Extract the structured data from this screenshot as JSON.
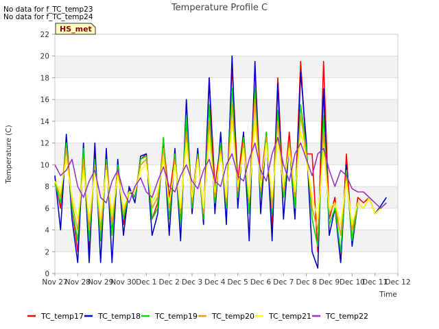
{
  "notes": [
    "No data for f_TC_temp23",
    "No data for f_TC_temp24"
  ],
  "badge": "HS_met",
  "chart_data": {
    "type": "line",
    "title": "Temperature Profile C",
    "xlabel": "Time",
    "ylabel": "Temperature (C)",
    "ylim": [
      0,
      22
    ],
    "yticks": [
      0,
      2,
      4,
      6,
      8,
      10,
      12,
      14,
      16,
      18,
      20,
      22
    ],
    "xlim": [
      0,
      15
    ],
    "xtick_labels": [
      "Nov 27",
      "Nov 28",
      "Nov 29",
      "Nov 30",
      "Dec 1",
      "Dec 2",
      "Dec 3",
      "Dec 4",
      "Dec 5",
      "Dec 6",
      "Dec 7",
      "Dec 8",
      "Dec 9",
      "Dec 10",
      "Dec 11",
      "Dec 12"
    ],
    "grid": true,
    "legend_position": "bottom",
    "x": [
      0.0,
      0.25,
      0.5,
      0.75,
      1.0,
      1.25,
      1.5,
      1.75,
      2.0,
      2.25,
      2.5,
      2.75,
      3.0,
      3.25,
      3.5,
      3.75,
      4.0,
      4.25,
      4.5,
      4.75,
      5.0,
      5.25,
      5.5,
      5.75,
      6.0,
      6.25,
      6.5,
      6.75,
      7.0,
      7.25,
      7.5,
      7.75,
      8.0,
      8.25,
      8.5,
      8.75,
      9.0,
      9.25,
      9.5,
      9.75,
      10.0,
      10.25,
      10.5,
      10.75,
      11.0,
      11.25,
      11.5,
      11.75,
      12.0,
      12.25,
      12.5,
      12.75,
      13.0,
      13.25,
      13.5,
      13.75,
      14.0,
      14.25,
      14.5
    ],
    "series": [
      {
        "name": "TC_temp17",
        "color": "#ff0000",
        "values": [
          8.8,
          6.0,
          12.5,
          6.0,
          2.0,
          11.0,
          2.0,
          11.0,
          3.0,
          11.0,
          4.0,
          10.0,
          4.5,
          7.8,
          7.0,
          10.5,
          11.0,
          5.0,
          6.5,
          12.0,
          7.0,
          11.0,
          5.0,
          14.0,
          7.0,
          11.0,
          5.0,
          18.0,
          8.0,
          12.0,
          6.0,
          19.0,
          8.5,
          13.0,
          6.0,
          19.0,
          8.0,
          13.0,
          4.0,
          18.0,
          7.0,
          13.0,
          6.0,
          19.5,
          11.0,
          11.0,
          2.0,
          19.5,
          5.0,
          7.0,
          1.0,
          11.0,
          3.0,
          7.0,
          6.5,
          7.0,
          5.5,
          6.0,
          6.5
        ]
      },
      {
        "name": "TC_temp18",
        "color": "#0000cc",
        "values": [
          9.0,
          4.0,
          12.8,
          5.0,
          1.0,
          12.0,
          1.0,
          12.0,
          1.0,
          11.5,
          1.0,
          10.5,
          3.5,
          8.0,
          6.5,
          10.8,
          11.0,
          3.5,
          5.5,
          12.5,
          3.5,
          11.5,
          3.0,
          16.0,
          5.5,
          11.5,
          4.5,
          18.0,
          5.5,
          13.0,
          4.5,
          20.0,
          6.0,
          13.0,
          3.0,
          19.5,
          5.5,
          13.0,
          3.0,
          17.5,
          5.0,
          12.0,
          5.0,
          18.5,
          12.0,
          2.0,
          0.5,
          17.0,
          3.5,
          6.0,
          1.0,
          10.0,
          2.5,
          6.5,
          6.0,
          7.0,
          5.5,
          6.2,
          7.0
        ]
      },
      {
        "name": "TC_temp19",
        "color": "#00dd00",
        "values": [
          8.3,
          6.5,
          12.0,
          6.0,
          3.0,
          11.5,
          3.0,
          10.5,
          3.0,
          10.5,
          3.5,
          10.0,
          5.0,
          7.5,
          7.0,
          10.5,
          10.8,
          5.0,
          6.0,
          12.5,
          5.0,
          11.0,
          4.5,
          14.5,
          6.0,
          11.0,
          5.0,
          15.5,
          6.5,
          12.0,
          6.0,
          17.0,
          7.0,
          12.5,
          5.5,
          17.0,
          7.0,
          13.0,
          5.5,
          15.0,
          7.0,
          12.0,
          6.0,
          15.5,
          11.5,
          5.0,
          2.5,
          14.5,
          4.5,
          6.0,
          2.0,
          9.5,
          3.0,
          6.5,
          6.0,
          7.0,
          5.5,
          6.0,
          6.5
        ]
      },
      {
        "name": "TC_temp20",
        "color": "#e8a000",
        "values": [
          8.5,
          7.0,
          11.5,
          6.5,
          4.0,
          10.5,
          4.0,
          10.0,
          4.0,
          10.0,
          4.5,
          9.5,
          5.5,
          7.5,
          7.5,
          10.0,
          10.5,
          6.0,
          7.0,
          11.5,
          6.0,
          10.5,
          5.5,
          13.0,
          6.5,
          10.8,
          5.5,
          14.0,
          7.0,
          11.5,
          6.5,
          15.5,
          7.5,
          12.0,
          6.5,
          16.0,
          7.5,
          12.5,
          6.0,
          14.0,
          7.5,
          12.0,
          7.0,
          14.5,
          11.0,
          6.0,
          4.0,
          13.0,
          5.5,
          6.5,
          3.5,
          9.0,
          4.0,
          6.5,
          6.0,
          7.0,
          5.5,
          6.0,
          6.5
        ]
      },
      {
        "name": "TC_temp21",
        "color": "#ffff00",
        "values": [
          8.5,
          7.5,
          10.5,
          7.0,
          5.0,
          9.5,
          5.0,
          9.5,
          5.0,
          9.5,
          5.5,
          9.0,
          6.0,
          7.5,
          7.5,
          9.5,
          10.0,
          6.5,
          7.5,
          10.5,
          6.5,
          10.0,
          6.0,
          12.0,
          7.0,
          10.5,
          6.0,
          12.5,
          7.5,
          11.0,
          7.0,
          14.0,
          8.0,
          11.5,
          7.0,
          14.0,
          8.0,
          12.0,
          7.0,
          12.5,
          8.0,
          11.5,
          7.5,
          13.0,
          10.5,
          7.0,
          5.0,
          11.5,
          6.0,
          6.5,
          4.5,
          8.5,
          4.5,
          6.5,
          6.0,
          7.0,
          5.5,
          6.0,
          6.5
        ]
      },
      {
        "name": "TC_temp22",
        "color": "#9933cc",
        "values": [
          10.0,
          9.0,
          9.5,
          10.5,
          8.0,
          7.0,
          8.5,
          9.5,
          7.0,
          6.5,
          8.5,
          9.5,
          7.5,
          6.5,
          8.0,
          8.8,
          7.5,
          7.0,
          8.5,
          9.8,
          8.0,
          7.5,
          9.0,
          10.0,
          8.5,
          7.8,
          9.5,
          10.5,
          8.5,
          8.0,
          10.0,
          11.0,
          9.0,
          8.5,
          10.5,
          12.0,
          9.5,
          8.5,
          11.0,
          12.5,
          10.0,
          8.5,
          11.0,
          12.0,
          10.5,
          9.0,
          11.0,
          11.5,
          9.5,
          8.0,
          9.5,
          9.0,
          7.8,
          7.5,
          7.5,
          7.0,
          6.5,
          6.0,
          6.5
        ]
      }
    ]
  }
}
